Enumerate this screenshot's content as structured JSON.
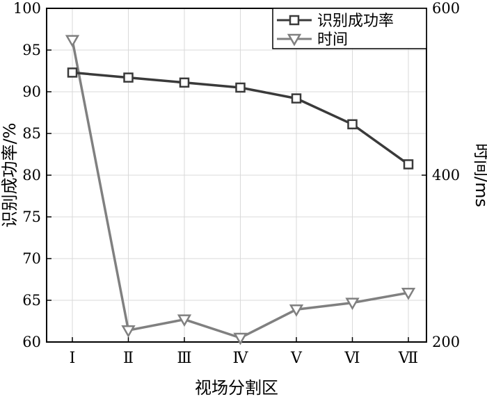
{
  "chart_data": {
    "type": "line",
    "categories": [
      "Ⅰ",
      "Ⅱ",
      "Ⅲ",
      "Ⅳ",
      "Ⅴ",
      "Ⅵ",
      "Ⅶ"
    ],
    "xlabel": "视场分割区",
    "ylabel": "识别成功率/%",
    "y2label": "时间/ms",
    "ylim": [
      60,
      100
    ],
    "yticks": [
      "60",
      "65",
      "70",
      "75",
      "80",
      "85",
      "90",
      "95",
      "100"
    ],
    "y2lim": [
      200,
      600
    ],
    "y2ticks": [
      "200",
      "400",
      "600"
    ],
    "grid": true,
    "legend_position": "top-right",
    "series": [
      {
        "name": "识别成功率",
        "axis": "left",
        "marker": "square",
        "color": "#3a3a3a",
        "values": [
          92.3,
          91.7,
          91.1,
          90.5,
          89.2,
          86.1,
          81.3
        ]
      },
      {
        "name": "时间",
        "axis": "right",
        "marker": "triangle-down",
        "color": "#808080",
        "values": [
          562,
          214,
          227,
          205,
          239,
          247,
          259
        ]
      }
    ]
  }
}
